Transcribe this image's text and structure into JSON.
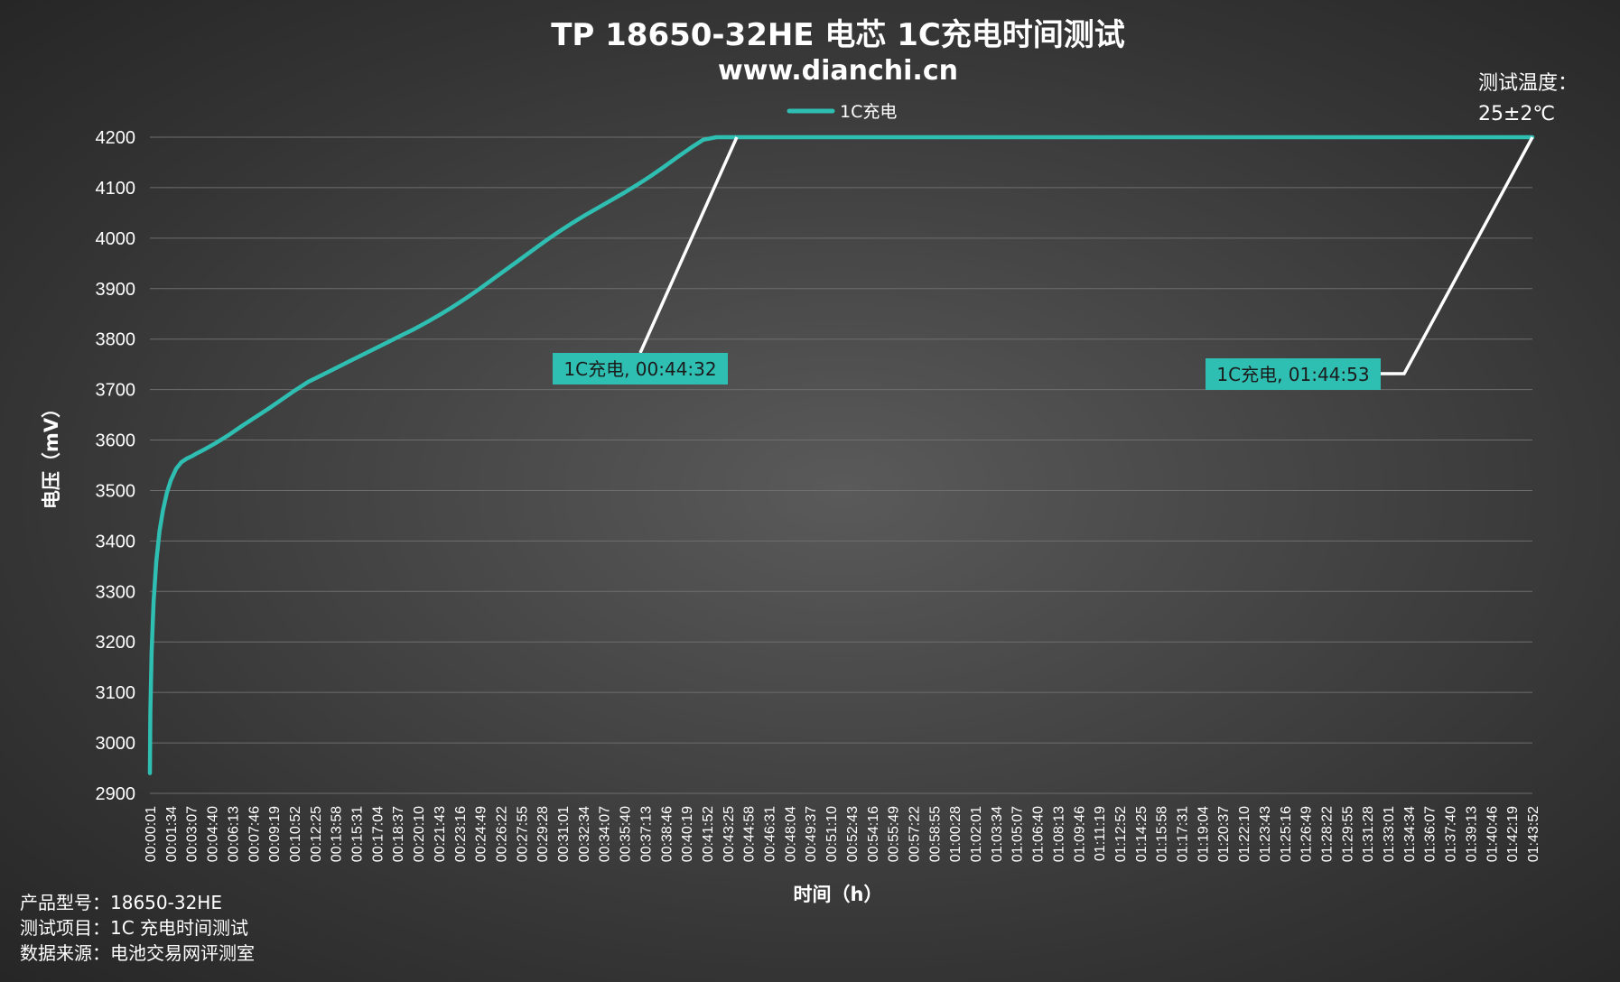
{
  "chart_data": {
    "type": "line",
    "title": "TP 18650-32HE 电芯 1C充电时间测试",
    "subtitle": "www.dianchi.cn",
    "xlabel": "时间（h）",
    "ylabel": "电压（mV）",
    "ylim": [
      2900,
      4200
    ],
    "y_ticks": [
      2900,
      3000,
      3100,
      3200,
      3300,
      3400,
      3500,
      3600,
      3700,
      3800,
      3900,
      4000,
      4100,
      4200
    ],
    "grid": true,
    "legend": {
      "placement": "top-center",
      "entries": [
        "1C充电"
      ]
    },
    "x_tick_labels": [
      "00:00:01",
      "00:01:34",
      "00:03:07",
      "00:04:40",
      "00:06:13",
      "00:07:46",
      "00:09:19",
      "00:10:52",
      "00:12:25",
      "00:13:58",
      "00:15:31",
      "00:17:04",
      "00:18:37",
      "00:20:10",
      "00:21:43",
      "00:23:16",
      "00:24:49",
      "00:26:22",
      "00:27:55",
      "00:29:28",
      "00:31:01",
      "00:32:34",
      "00:34:07",
      "00:35:40",
      "00:37:13",
      "00:38:46",
      "00:40:19",
      "00:41:52",
      "00:43:25",
      "00:44:58",
      "00:46:31",
      "00:48:04",
      "00:49:37",
      "00:51:10",
      "00:52:43",
      "00:54:16",
      "00:55:49",
      "00:57:22",
      "00:58:55",
      "01:00:28",
      "01:02:01",
      "01:03:34",
      "01:05:07",
      "01:06:40",
      "01:08:13",
      "01:09:46",
      "01:11:19",
      "01:12:52",
      "01:14:25",
      "01:15:58",
      "01:17:31",
      "01:19:04",
      "01:20:37",
      "01:22:10",
      "01:23:43",
      "01:25:16",
      "01:26:49",
      "01:28:22",
      "01:29:55",
      "01:31:28",
      "01:33:01",
      "01:34:34",
      "01:36:07",
      "01:37:40",
      "01:39:13",
      "01:40:46",
      "01:42:19",
      "01:43:52"
    ],
    "x_range_minutes": [
      0.0167,
      104.883
    ],
    "series": [
      {
        "name": "1C充电",
        "color": "#2fbfb2",
        "x_minutes": [
          0.0167,
          0.05,
          0.15,
          0.3,
          0.5,
          0.75,
          1.0,
          1.3,
          1.6,
          2.0,
          2.4,
          2.8,
          3.2,
          3.6,
          4.2,
          5.0,
          6.0,
          7.0,
          8.0,
          9.0,
          10.0,
          11.0,
          12.0,
          13.0,
          14.0,
          15.0,
          16.0,
          17.0,
          18.0,
          19.0,
          20.0,
          21.0,
          22.0,
          23.0,
          24.0,
          25.0,
          26.0,
          27.0,
          28.0,
          29.0,
          30.0,
          31.0,
          32.0,
          33.0,
          34.0,
          35.0,
          36.0,
          37.0,
          38.0,
          39.0,
          40.0,
          41.0,
          42.0,
          43.0,
          44.0,
          44.5333,
          50,
          60,
          70,
          80,
          90,
          100,
          104.883
        ],
        "voltage_mV": [
          2940,
          3060,
          3180,
          3280,
          3360,
          3420,
          3460,
          3495,
          3520,
          3543,
          3556,
          3563,
          3568,
          3574,
          3582,
          3594,
          3610,
          3628,
          3645,
          3662,
          3680,
          3698,
          3715,
          3728,
          3741,
          3754,
          3767,
          3780,
          3793,
          3806,
          3819,
          3833,
          3848,
          3864,
          3881,
          3899,
          3918,
          3937,
          3956,
          3975,
          3994,
          4012,
          4029,
          4045,
          4060,
          4075,
          4090,
          4106,
          4123,
          4141,
          4160,
          4178,
          4195,
          4200,
          4200,
          4200,
          4200,
          4200,
          4200,
          4200,
          4200,
          4200,
          4200
        ]
      }
    ],
    "annotations": [
      {
        "text": "1C充电, 00:44:32",
        "x_minutes": 44.5333,
        "y": 4200
      },
      {
        "text": "1C充电, 01:44:53",
        "x_minutes": 104.883,
        "y": 4200
      }
    ]
  },
  "side_note": {
    "line1": "测试温度：",
    "line2": "25±2℃"
  },
  "footer": {
    "line1": "产品型号：18650-32HE",
    "line2": "测试项目：1C 充电时间测试",
    "line3": "数据来源：电池交易网评测室"
  },
  "colors": {
    "series": "#2fbfb2",
    "annotation_bg": "#2fbfb2",
    "leader_line": "#ffffff",
    "grid": "#6e6e6e"
  }
}
